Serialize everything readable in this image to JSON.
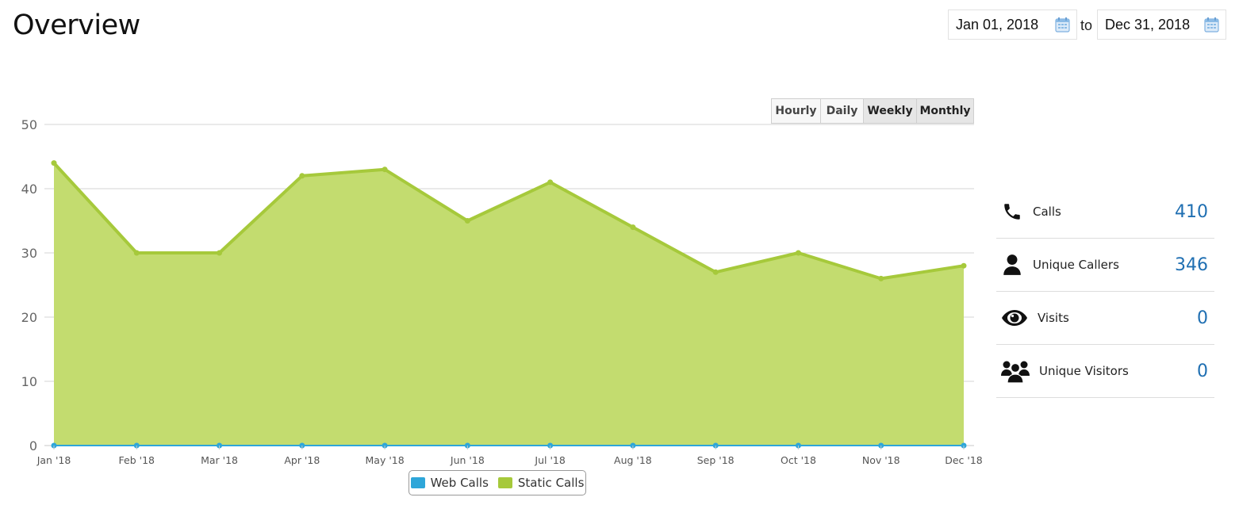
{
  "header": {
    "title": "Overview",
    "date_from": "Jan 01, 2018",
    "date_to": "Dec 31, 2018",
    "to_label": "to"
  },
  "range_buttons": [
    {
      "label": "Hourly",
      "active": false
    },
    {
      "label": "Daily",
      "active": false
    },
    {
      "label": "Weekly",
      "active": true
    },
    {
      "label": "Monthly",
      "active": true
    }
  ],
  "legend": [
    {
      "label": "Web Calls",
      "color": "#2ea6d9"
    },
    {
      "label": "Static Calls",
      "color": "#a6c93b"
    }
  ],
  "stats": [
    {
      "label": "Calls",
      "value": "410",
      "icon": "phone-icon"
    },
    {
      "label": "Unique Callers",
      "value": "346",
      "icon": "user-icon"
    },
    {
      "label": "Visits",
      "value": "0",
      "icon": "eye-icon"
    },
    {
      "label": "Unique Visitors",
      "value": "0",
      "icon": "users-icon"
    }
  ],
  "colors": {
    "accent_value": "#1f6fb2",
    "static_fill": "#c3dc6f",
    "static_line": "#a6c93b",
    "web_line": "#2ea6d9"
  },
  "chart_data": {
    "type": "area",
    "categories": [
      "Jan '18",
      "Feb '18",
      "Mar '18",
      "Apr '18",
      "May '18",
      "Jun '18",
      "Jul '18",
      "Aug '18",
      "Sep '18",
      "Oct '18",
      "Nov '18",
      "Dec '18"
    ],
    "ylim": [
      0,
      50
    ],
    "yticks": [
      0,
      10,
      20,
      30,
      40,
      50
    ],
    "grid": true,
    "legend_position": "bottom-center",
    "series": [
      {
        "name": "Web Calls",
        "values": [
          0,
          0,
          0,
          0,
          0,
          0,
          0,
          0,
          0,
          0,
          0,
          0
        ]
      },
      {
        "name": "Static Calls",
        "values": [
          44,
          30,
          30,
          42,
          43,
          35,
          41,
          34,
          27,
          30,
          26,
          28
        ]
      }
    ]
  }
}
